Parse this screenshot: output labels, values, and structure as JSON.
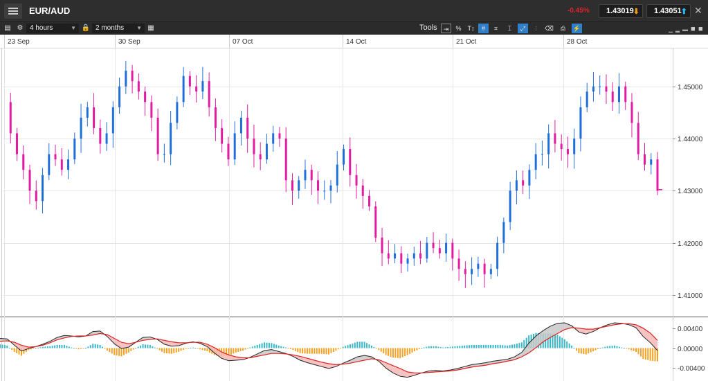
{
  "header": {
    "instrument": "EUR/AUD",
    "change": "-0.45%",
    "sell_price": "1.43019",
    "buy_price": "1.43051",
    "close_glyph": "✕"
  },
  "toolbar": {
    "interval": "4 hours",
    "period": "2 months",
    "tools_label": "Tools",
    "percent_label": "%",
    "text_tool_label": "T↕"
  },
  "colors": {
    "up_candle": "#1e6fdc",
    "down_candle": "#e31ba2",
    "signal_line": "#e02020",
    "histogram_positive": "#38b8c8",
    "histogram_negative": "#f5a020"
  },
  "chart_data": {
    "type": "candlestick",
    "instrument": "EUR/AUD",
    "interval": "4 hours",
    "x_tick_labels": [
      "23 Sep",
      "30 Sep",
      "07 Oct",
      "14 Oct",
      "21 Oct",
      "28 Oct"
    ],
    "y_tick_labels": [
      "1.45000",
      "1.44000",
      "1.43000",
      "1.42000",
      "1.41000"
    ],
    "ylim": [
      1.406,
      1.457
    ],
    "y_ticks": [
      1.45,
      1.44,
      1.43,
      1.42,
      1.41
    ],
    "close_path": [
      1.447,
      1.441,
      1.437,
      1.434,
      1.43,
      1.428,
      1.433,
      1.437,
      1.436,
      1.434,
      1.436,
      1.44,
      1.444,
      1.446,
      1.442,
      1.439,
      1.441,
      1.446,
      1.45,
      1.453,
      1.451,
      1.449,
      1.447,
      1.444,
      1.437,
      1.437,
      1.443,
      1.447,
      1.452,
      1.45,
      1.449,
      1.451,
      1.446,
      1.442,
      1.439,
      1.436,
      1.441,
      1.444,
      1.44,
      1.437,
      1.436,
      1.439,
      1.441,
      1.44,
      1.432,
      1.43,
      1.432,
      1.434,
      1.432,
      1.43,
      1.43,
      1.431,
      1.435,
      1.438,
      1.433,
      1.431,
      1.429,
      1.427,
      1.421,
      1.418,
      1.417,
      1.418,
      1.416,
      1.417,
      1.418,
      1.417,
      1.42,
      1.419,
      1.418,
      1.42,
      1.417,
      1.415,
      1.414,
      1.415,
      1.416,
      1.414,
      1.415,
      1.42,
      1.424,
      1.43,
      1.432,
      1.431,
      1.434,
      1.437,
      1.437,
      1.441,
      1.439,
      1.438,
      1.437,
      1.44,
      1.446,
      1.449,
      1.45,
      1.45,
      1.449,
      1.447,
      1.45,
      1.447,
      1.443,
      1.437,
      1.435,
      1.436,
      1.43
    ],
    "last_close": 1.4302,
    "indicator": {
      "type": "macd",
      "y_tick_labels": [
        "0.00400",
        "0.00000",
        "-0.00400"
      ],
      "ylim": [
        -0.0062,
        0.0062
      ],
      "y_ticks": [
        0.004,
        0.0,
        -0.004
      ],
      "macd": [
        0.002,
        0.0019,
        0.0006,
        -0.0006,
        -0.0001,
        0.0003,
        0.0008,
        0.0014,
        0.0022,
        0.0026,
        0.0025,
        0.0023,
        0.0025,
        0.0034,
        0.0035,
        0.0024,
        0.0009,
        -0.0001,
        0.0002,
        0.0012,
        0.0022,
        0.0023,
        0.0018,
        0.0008,
        0.0004,
        0.0005,
        0.001,
        0.0013,
        0.001,
        0.0003,
        -0.001,
        -0.0021,
        -0.0026,
        -0.0025,
        -0.0024,
        -0.0019,
        -0.0012,
        -0.0005,
        -0.0003,
        -0.0007,
        -0.0011,
        -0.0017,
        -0.0025,
        -0.003,
        -0.0034,
        -0.0038,
        -0.0042,
        -0.0038,
        -0.0031,
        -0.0025,
        -0.0018,
        -0.0015,
        -0.0018,
        -0.0027,
        -0.0041,
        -0.0051,
        -0.0058,
        -0.006,
        -0.0056,
        -0.0051,
        -0.0047,
        -0.0046,
        -0.0047,
        -0.0045,
        -0.0042,
        -0.0038,
        -0.0034,
        -0.0032,
        -0.003,
        -0.0027,
        -0.0025,
        -0.0023,
        -0.0018,
        -0.0009,
        0.001,
        0.0025,
        0.0036,
        0.0045,
        0.0051,
        0.0052,
        0.0046,
        0.0033,
        0.0029,
        0.0034,
        0.0042,
        0.0048,
        0.0052,
        0.0051,
        0.0048,
        0.0042,
        0.0024,
        0.0011,
        -0.0005
      ],
      "signal": [
        0.0014,
        0.0015,
        0.0012,
        0.0006,
        0.0002,
        0.0003,
        0.0006,
        0.0011,
        0.0017,
        0.0021,
        0.0024,
        0.0025,
        0.0025,
        0.0027,
        0.003,
        0.0028,
        0.002,
        0.0012,
        0.0009,
        0.0012,
        0.0016,
        0.0018,
        0.0019,
        0.0016,
        0.0013,
        0.0011,
        0.0011,
        0.0012,
        0.0012,
        0.0008,
        0.0001,
        -0.0008,
        -0.0014,
        -0.0018,
        -0.002,
        -0.002,
        -0.0017,
        -0.0014,
        -0.0011,
        -0.0011,
        -0.0012,
        -0.0014,
        -0.0017,
        -0.0021,
        -0.0025,
        -0.0029,
        -0.0032,
        -0.0034,
        -0.0033,
        -0.0031,
        -0.0028,
        -0.0025,
        -0.0022,
        -0.0024,
        -0.003,
        -0.0036,
        -0.0042,
        -0.0049,
        -0.0051,
        -0.0051,
        -0.005,
        -0.0049,
        -0.0048,
        -0.0047,
        -0.0045,
        -0.0042,
        -0.0039,
        -0.0037,
        -0.0035,
        -0.0032,
        -0.003,
        -0.0027,
        -0.0024,
        -0.0018,
        -0.001,
        0.0001,
        0.0013,
        0.0022,
        0.003,
        0.0038,
        0.0042,
        0.0041,
        0.0039,
        0.0039,
        0.0042,
        0.0045,
        0.0048,
        0.005,
        0.005,
        0.0048,
        0.0041,
        0.0031,
        0.0016
      ]
    }
  }
}
